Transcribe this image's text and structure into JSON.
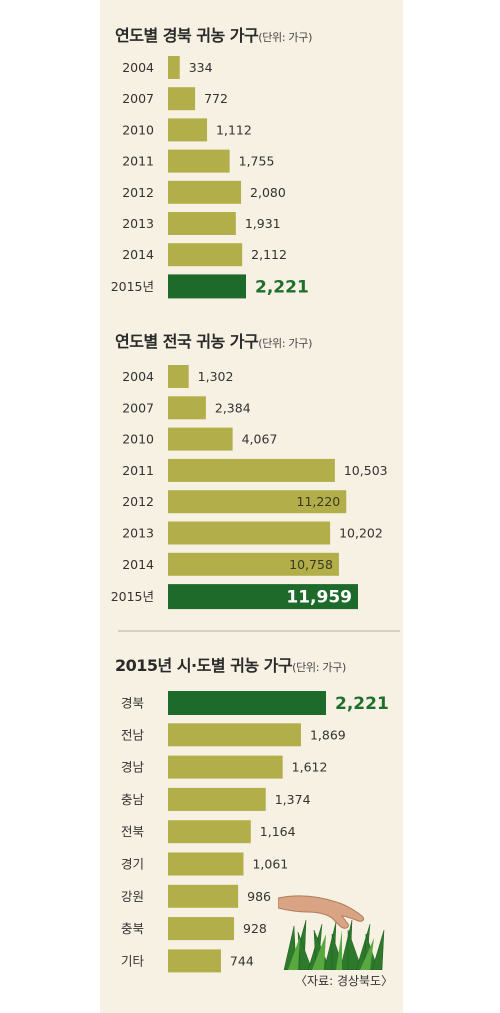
{
  "colors": {
    "bar": "#b2ae4a",
    "highlight": "#1d6a2b",
    "panel": "#f6f1e3"
  },
  "chart_data": [
    {
      "type": "bar",
      "orientation": "horizontal",
      "title": "연도별 경북 귀농 가구",
      "unit": "(단위: 가구)",
      "categories": [
        "2004",
        "2007",
        "2010",
        "2011",
        "2012",
        "2013",
        "2014",
        "2015년"
      ],
      "values": [
        334,
        772,
        1112,
        1755,
        2080,
        1931,
        2112,
        2221
      ],
      "value_labels": [
        "334",
        "772",
        "1,112",
        "1,755",
        "2,080",
        "1,931",
        "2,112",
        "2,221"
      ],
      "highlight_index": 7,
      "label_inside": [
        false,
        false,
        false,
        false,
        false,
        false,
        false,
        false
      ]
    },
    {
      "type": "bar",
      "orientation": "horizontal",
      "title": "연도별 전국 귀농 가구",
      "unit": "(단위: 가구)",
      "categories": [
        "2004",
        "2007",
        "2010",
        "2011",
        "2012",
        "2013",
        "2014",
        "2015년"
      ],
      "values": [
        1302,
        2384,
        4067,
        10503,
        11220,
        10202,
        10758,
        11959
      ],
      "value_labels": [
        "1,302",
        "2,384",
        "4,067",
        "10,503",
        "11,220",
        "10,202",
        "10,758",
        "11,959"
      ],
      "highlight_index": 7,
      "label_inside": [
        false,
        false,
        false,
        false,
        true,
        false,
        true,
        true
      ]
    },
    {
      "type": "bar",
      "orientation": "horizontal",
      "title": "2015년 시·도별 귀농 가구",
      "unit": "(단위: 가구)",
      "categories": [
        "경북",
        "전남",
        "경남",
        "충남",
        "전북",
        "경기",
        "강원",
        "충북",
        "기타"
      ],
      "values": [
        2221,
        1869,
        1612,
        1374,
        1164,
        1061,
        986,
        928,
        744
      ],
      "value_labels": [
        "2,221",
        "1,869",
        "1,612",
        "1,374",
        "1,164",
        "1,061",
        "986",
        "928",
        "744"
      ],
      "highlight_index": 0,
      "label_inside": [
        false,
        false,
        false,
        false,
        false,
        false,
        false,
        false,
        false
      ]
    }
  ],
  "source": "〈자료: 경상북도〉"
}
